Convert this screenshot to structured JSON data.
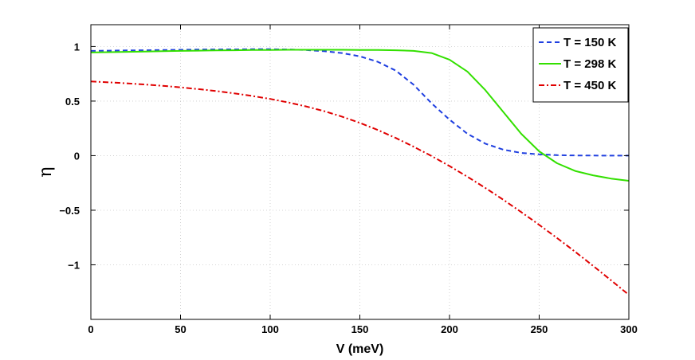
{
  "chart_data": {
    "type": "line",
    "title": "",
    "xlabel": "V (meV)",
    "ylabel": "η",
    "xlim": [
      0,
      300
    ],
    "ylim": [
      -1.5,
      1.2
    ],
    "xticks": [
      0,
      50,
      100,
      150,
      200,
      250,
      300
    ],
    "yticks": [
      -1,
      -0.5,
      0,
      0.5,
      1
    ],
    "xtick_labels": [
      "0",
      "50",
      "100",
      "150",
      "200",
      "250",
      "300"
    ],
    "ytick_labels": [
      "−1",
      "−0.5",
      "0",
      "0.5",
      "1"
    ],
    "grid": true,
    "legend_position": "top-right",
    "x": [
      0,
      10,
      20,
      30,
      40,
      50,
      60,
      70,
      80,
      90,
      100,
      110,
      120,
      130,
      140,
      150,
      160,
      170,
      180,
      190,
      200,
      210,
      220,
      230,
      240,
      250,
      260,
      270,
      280,
      290,
      300
    ],
    "series": [
      {
        "name": "T = 150 K",
        "color": "#1f3fe0",
        "dash": "dashed",
        "values": [
          0.96,
          0.962,
          0.964,
          0.966,
          0.968,
          0.97,
          0.972,
          0.973,
          0.974,
          0.975,
          0.975,
          0.973,
          0.968,
          0.957,
          0.94,
          0.91,
          0.86,
          0.78,
          0.65,
          0.48,
          0.33,
          0.2,
          0.11,
          0.055,
          0.025,
          0.012,
          0.005,
          0.002,
          0.001,
          0.0,
          0.0
        ]
      },
      {
        "name": "T = 298 K",
        "color": "#33e000",
        "dash": "solid",
        "values": [
          0.945,
          0.948,
          0.951,
          0.954,
          0.957,
          0.96,
          0.962,
          0.964,
          0.966,
          0.968,
          0.969,
          0.97,
          0.97,
          0.97,
          0.97,
          0.969,
          0.968,
          0.966,
          0.96,
          0.94,
          0.88,
          0.77,
          0.6,
          0.4,
          0.2,
          0.04,
          -0.07,
          -0.14,
          -0.18,
          -0.21,
          -0.23
        ]
      },
      {
        "name": "T = 450 K",
        "color": "#e00000",
        "dash": "dashdot",
        "values": [
          0.68,
          0.672,
          0.663,
          0.652,
          0.64,
          0.626,
          0.61,
          0.592,
          0.571,
          0.547,
          0.52,
          0.488,
          0.451,
          0.408,
          0.358,
          0.3,
          0.235,
          0.162,
          0.082,
          -0.003,
          -0.095,
          -0.193,
          -0.296,
          -0.404,
          -0.517,
          -0.634,
          -0.755,
          -0.88,
          -1.009,
          -1.141,
          -1.275
        ]
      }
    ]
  }
}
